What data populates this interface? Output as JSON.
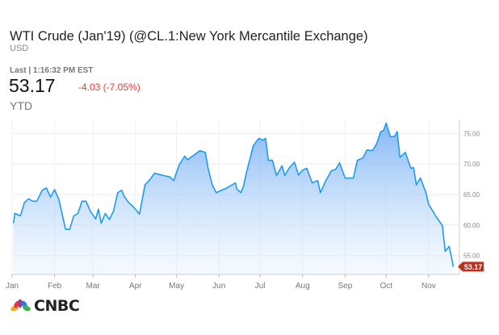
{
  "header": {
    "title": "WTI Crude (Jan'19) (@CL.1:New York Mercantile Exchange)",
    "currency": "USD",
    "last_label": "Last | 1:16:32 PM EST",
    "price": "53.17",
    "change": "-4.03 (-7.05%)",
    "period": "YTD"
  },
  "colors": {
    "line": "#1e9bf0",
    "fill_top": "#7fb8f5",
    "change_negative": "#e8383a",
    "price_tag": "#b8321f"
  },
  "brand": {
    "logo_text": "CNBC",
    "watermark_text": "CNBC",
    "logo_icon": "peacock-icon"
  },
  "chart_data": {
    "type": "area",
    "x_axis": {
      "type": "date",
      "tick_labels": [
        "Jan",
        "Feb",
        "Mar",
        "Apr",
        "May",
        "Jun",
        "Jul",
        "Aug",
        "Sep",
        "Oct",
        "Nov"
      ],
      "ticks": [
        "01-01",
        "02-01",
        "03-01",
        "04-01",
        "05-01",
        "06-01",
        "07-01",
        "08-01",
        "09-01",
        "10-01",
        "11-01"
      ]
    },
    "y_axis": {
      "position": "right",
      "ylim": [
        51.9,
        77.3
      ],
      "tick_labels": [
        "75.00",
        "70.00",
        "65.00",
        "60.00",
        "55.00"
      ],
      "ticks": [
        75,
        70,
        65,
        60,
        55
      ]
    },
    "grid": true,
    "last_value_label": "53.17",
    "series": [
      {
        "x": [
          "01-02",
          "01-03",
          "01-07",
          "01-10",
          "01-13",
          "01-16",
          "01-19",
          "01-23",
          "01-26",
          "01-29",
          "02-01",
          "02-04",
          "02-07",
          "02-09",
          "02-12",
          "02-15",
          "02-18",
          "02-21",
          "02-24",
          "02-27",
          "03-03",
          "03-05",
          "03-07",
          "03-10",
          "03-13",
          "03-16",
          "03-19",
          "03-22",
          "03-24",
          "03-27",
          "03-30",
          "04-04",
          "04-08",
          "04-11",
          "04-15",
          "04-20",
          "04-26",
          "04-29",
          "05-03",
          "05-07",
          "05-09",
          "05-14",
          "05-18",
          "05-22",
          "05-24",
          "05-27",
          "05-30",
          "06-02",
          "06-06",
          "06-13",
          "06-14",
          "06-17",
          "06-19",
          "06-21",
          "06-26",
          "06-30",
          "07-03",
          "07-05",
          "07-07",
          "07-10",
          "07-13",
          "07-17",
          "07-19",
          "07-22",
          "07-26",
          "07-29",
          "08-01",
          "08-04",
          "08-08",
          "08-12",
          "08-14",
          "08-18",
          "08-22",
          "08-25",
          "08-28",
          "09-01",
          "09-07",
          "09-10",
          "09-14",
          "09-17",
          "09-21",
          "09-24",
          "09-27",
          "09-29",
          "10-01",
          "10-04",
          "10-07",
          "10-09",
          "10-11",
          "10-15",
          "10-19",
          "10-21",
          "10-23",
          "10-26",
          "10-30",
          "11-01",
          "11-06",
          "11-11",
          "11-13",
          "11-16",
          "11-19"
        ],
        "y": [
          60.3,
          61.9,
          61.5,
          63.7,
          64.3,
          63.9,
          63.9,
          65.7,
          66.1,
          64.6,
          65.8,
          64.3,
          61.3,
          59.3,
          59.3,
          61.5,
          61.9,
          63.9,
          63.9,
          62.3,
          61.0,
          62.6,
          60.3,
          61.9,
          60.9,
          62.3,
          65.3,
          65.7,
          64.6,
          63.7,
          63.1,
          61.8,
          66.6,
          67.3,
          68.5,
          68.2,
          67.9,
          67.3,
          69.9,
          71.3,
          70.7,
          71.5,
          72.2,
          71.9,
          69.3,
          66.6,
          65.3,
          65.6,
          66.0,
          66.9,
          65.9,
          65.3,
          66.5,
          68.6,
          73.0,
          74.2,
          73.9,
          74.2,
          70.6,
          70.6,
          68.1,
          69.7,
          68.1,
          69.3,
          70.3,
          68.2,
          69.0,
          69.3,
          66.9,
          67.3,
          65.3,
          67.3,
          68.9,
          69.1,
          70.2,
          67.7,
          67.7,
          70.6,
          71.0,
          72.3,
          72.2,
          73.3,
          75.3,
          75.5,
          76.7,
          74.5,
          74.5,
          75.3,
          71.1,
          71.9,
          69.3,
          69.4,
          66.6,
          67.7,
          65.3,
          63.4,
          61.5,
          59.9,
          55.7,
          56.5,
          53.17
        ]
      }
    ]
  }
}
